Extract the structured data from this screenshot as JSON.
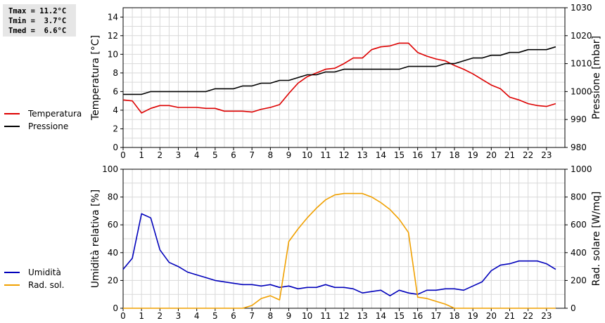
{
  "stats": {
    "tmax": "Tmax = 11.2°C",
    "tmin": "Tmin =  3.7°C",
    "tmed": "Tmed =  6.6°C"
  },
  "legend": {
    "top": [
      {
        "label": "Temperatura",
        "color": "#dd0000"
      },
      {
        "label": "Pressione",
        "color": "#000000"
      }
    ],
    "bottom": [
      {
        "label": "Umidità",
        "color": "#0000bb"
      },
      {
        "label": "Rad. sol.",
        "color": "#f0a000"
      }
    ]
  },
  "chart_data": [
    {
      "type": "line",
      "ylabel": "Temperatura [°C]",
      "y2label": "Pressione [mbar]",
      "xlim": [
        0,
        24
      ],
      "ylim": [
        0,
        15
      ],
      "y2lim": [
        980,
        1030
      ],
      "x_ticks": [
        0,
        1,
        2,
        3,
        4,
        5,
        6,
        7,
        8,
        9,
        10,
        11,
        12,
        13,
        14,
        15,
        16,
        17,
        18,
        19,
        20,
        21,
        22,
        23
      ],
      "y_ticks": [
        0,
        2,
        4,
        6,
        8,
        10,
        12,
        14
      ],
      "y2_ticks": [
        980,
        990,
        1000,
        1010,
        1020,
        1030
      ],
      "grid": true,
      "series": [
        {
          "name": "Temperatura",
          "axis": "left",
          "color": "#dd0000",
          "x": [
            0,
            0.5,
            1,
            1.5,
            2,
            2.5,
            3,
            3.5,
            4,
            4.5,
            5,
            5.5,
            6,
            6.5,
            7,
            7.5,
            8,
            8.5,
            9,
            9.5,
            10,
            10.5,
            11,
            11.5,
            12,
            12.5,
            13,
            13.5,
            14,
            14.5,
            15,
            15.5,
            16,
            16.5,
            17,
            17.5,
            18,
            18.5,
            19,
            19.5,
            20,
            20.5,
            21,
            21.5,
            22,
            22.5,
            23,
            23.5
          ],
          "y": [
            5.1,
            5.0,
            3.7,
            4.2,
            4.5,
            4.5,
            4.3,
            4.3,
            4.3,
            4.2,
            4.2,
            3.9,
            3.9,
            3.9,
            3.8,
            4.1,
            4.3,
            4.6,
            5.8,
            6.9,
            7.6,
            8.0,
            8.4,
            8.5,
            9.0,
            9.6,
            9.6,
            10.5,
            10.8,
            10.9,
            11.2,
            11.2,
            10.2,
            9.8,
            9.5,
            9.3,
            8.8,
            8.4,
            7.9,
            7.3,
            6.7,
            6.3,
            5.4,
            5.1,
            4.7,
            4.5,
            4.4,
            4.7
          ]
        },
        {
          "name": "Pressione",
          "axis": "right",
          "color": "#000000",
          "x": [
            0,
            0.5,
            1,
            1.5,
            2,
            2.5,
            3,
            3.5,
            4,
            4.5,
            5,
            5.5,
            6,
            6.5,
            7,
            7.5,
            8,
            8.5,
            9,
            9.5,
            10,
            10.5,
            11,
            11.5,
            12,
            12.5,
            13,
            13.5,
            14,
            14.5,
            15,
            15.5,
            16,
            16.5,
            17,
            17.5,
            18,
            18.5,
            19,
            19.5,
            20,
            20.5,
            21,
            21.5,
            22,
            22.5,
            23,
            23.5
          ],
          "y": [
            999,
            999,
            999,
            1000,
            1000,
            1000,
            1000,
            1000,
            1000,
            1000,
            1001,
            1001,
            1001,
            1002,
            1002,
            1003,
            1003,
            1004,
            1004,
            1005,
            1006,
            1006,
            1007,
            1007,
            1008,
            1008,
            1008,
            1008,
            1008,
            1008,
            1008,
            1009,
            1009,
            1009,
            1009,
            1010,
            1010,
            1011,
            1012,
            1012,
            1013,
            1013,
            1014,
            1014,
            1015,
            1015,
            1015,
            1016
          ]
        }
      ]
    },
    {
      "type": "line",
      "ylabel": "Umidità relativa [%]",
      "y2label": "Rad. solare [W/mq]",
      "xlim": [
        0,
        24
      ],
      "ylim": [
        0,
        100
      ],
      "y2lim": [
        0,
        1000
      ],
      "x_ticks": [
        0,
        1,
        2,
        3,
        4,
        5,
        6,
        7,
        8,
        9,
        10,
        11,
        12,
        13,
        14,
        15,
        16,
        17,
        18,
        19,
        20,
        21,
        22,
        23
      ],
      "y_ticks": [
        0,
        20,
        40,
        60,
        80,
        100
      ],
      "y2_ticks": [
        0,
        200,
        400,
        600,
        800,
        1000
      ],
      "grid": true,
      "series": [
        {
          "name": "Umidità",
          "axis": "left",
          "color": "#0000bb",
          "x": [
            0,
            0.5,
            1,
            1.5,
            2,
            2.5,
            3,
            3.5,
            4,
            4.5,
            5,
            5.5,
            6,
            6.5,
            7,
            7.5,
            8,
            8.5,
            9,
            9.5,
            10,
            10.5,
            11,
            11.5,
            12,
            12.5,
            13,
            13.5,
            14,
            14.5,
            15,
            15.5,
            16,
            16.5,
            17,
            17.5,
            18,
            18.5,
            19,
            19.5,
            20,
            20.5,
            21,
            21.5,
            22,
            22.5,
            23,
            23.5
          ],
          "y": [
            28,
            36,
            68,
            65,
            42,
            33,
            30,
            26,
            24,
            22,
            20,
            19,
            18,
            17,
            17,
            16,
            17,
            15,
            16,
            14,
            15,
            15,
            17,
            15,
            15,
            14,
            11,
            12,
            13,
            9,
            13,
            11,
            10,
            13,
            13,
            14,
            14,
            13,
            16,
            19,
            27,
            31,
            32,
            34,
            34,
            34,
            32,
            28
          ]
        },
        {
          "name": "Rad. sol.",
          "axis": "right",
          "color": "#f0a000",
          "x": [
            0,
            0.5,
            1,
            1.5,
            2,
            2.5,
            3,
            3.5,
            4,
            4.5,
            5,
            5.5,
            6,
            6.5,
            7,
            7.5,
            8,
            8.5,
            9,
            9.5,
            10,
            10.5,
            11,
            11.5,
            12,
            12.5,
            13,
            13.5,
            14,
            14.5,
            15,
            15.5,
            16,
            16.5,
            17,
            17.5,
            18,
            18.5,
            19,
            19.5,
            20,
            20.5,
            21,
            21.5,
            22,
            22.5,
            23,
            23.5
          ],
          "y": [
            0,
            0,
            0,
            0,
            0,
            0,
            0,
            0,
            0,
            0,
            0,
            0,
            0,
            0,
            20,
            70,
            90,
            60,
            480,
            570,
            650,
            720,
            780,
            815,
            825,
            825,
            825,
            800,
            760,
            710,
            640,
            545,
            80,
            70,
            50,
            30,
            0,
            0,
            0,
            0,
            0,
            0,
            0,
            0,
            0,
            0,
            0,
            0
          ]
        }
      ]
    }
  ]
}
